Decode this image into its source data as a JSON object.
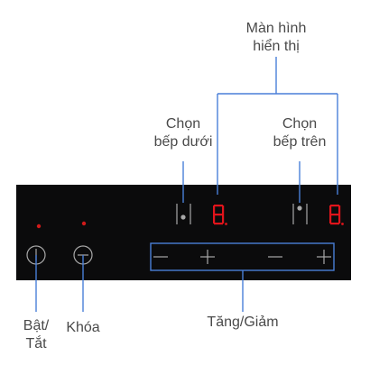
{
  "labels": {
    "display": [
      "Màn hình",
      "hiển thị"
    ],
    "lower": [
      "Chọn",
      "bếp dưới"
    ],
    "upper": [
      "Chọn",
      "bếp trên"
    ],
    "power": [
      "Bật/",
      "Tắt"
    ],
    "lock": "Khóa",
    "adjust": "Tăng/Giảm"
  },
  "colors": {
    "panel": "#0b0b0c",
    "callout": "#4a7fd8",
    "digit": "#e0141b",
    "control": "#a8a8a8",
    "text": "#4a4a4a"
  },
  "digits": [
    "8",
    "8"
  ]
}
